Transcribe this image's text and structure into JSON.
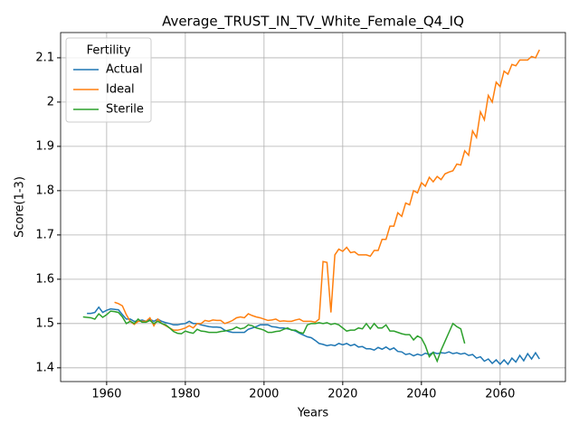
{
  "chart_data": {
    "type": "line",
    "title": "Average_TRUST_IN_TV_White_Female_Q4_IQ",
    "x_label": "Years",
    "y_label": "Score(1-3)",
    "xlim": [
      1948.3,
      2076.6
    ],
    "ylim": [
      1.369,
      2.157
    ],
    "xticks": [
      1960,
      1980,
      2000,
      2020,
      2040,
      2060
    ],
    "yticks": [
      1.4,
      1.5,
      1.6,
      1.7,
      1.8,
      1.9,
      2.0,
      2.1
    ],
    "grid": true,
    "legend_title": "Fertility",
    "legend_loc": "upper left",
    "x": [
      1954,
      1955,
      1956,
      1957,
      1958,
      1959,
      1960,
      1961,
      1962,
      1963,
      1964,
      1965,
      1966,
      1967,
      1968,
      1969,
      1970,
      1971,
      1972,
      1973,
      1974,
      1975,
      1976,
      1977,
      1978,
      1979,
      1980,
      1981,
      1982,
      1983,
      1984,
      1985,
      1986,
      1987,
      1988,
      1989,
      1990,
      1991,
      1992,
      1993,
      1994,
      1995,
      1996,
      1997,
      1998,
      1999,
      2000,
      2001,
      2002,
      2003,
      2004,
      2005,
      2006,
      2007,
      2008,
      2009,
      2010,
      2011,
      2012,
      2013,
      2014,
      2015,
      2016,
      2017,
      2018,
      2019,
      2020,
      2021,
      2022,
      2023,
      2024,
      2025,
      2026,
      2027,
      2028,
      2029,
      2030,
      2031,
      2032,
      2033,
      2034,
      2035,
      2036,
      2037,
      2038,
      2039,
      2040,
      2041,
      2042,
      2043,
      2044,
      2045,
      2046,
      2047,
      2048,
      2049,
      2050,
      2051,
      2052,
      2053,
      2054,
      2055,
      2056,
      2057,
      2058,
      2059,
      2060,
      2061,
      2062,
      2063,
      2064,
      2065,
      2066,
      2067,
      2068,
      2069,
      2070
    ],
    "series": [
      {
        "name": "Actual",
        "color": "#1f77b4",
        "values": [
          null,
          1.523,
          1.523,
          1.525,
          1.537,
          1.525,
          1.53,
          1.533,
          1.532,
          1.531,
          1.52,
          1.51,
          1.51,
          1.505,
          1.505,
          1.508,
          1.505,
          1.51,
          1.505,
          1.51,
          1.505,
          1.502,
          1.5,
          1.497,
          1.497,
          1.499,
          1.5,
          1.505,
          1.5,
          1.5,
          1.497,
          1.495,
          1.493,
          1.492,
          1.492,
          1.491,
          1.485,
          1.482,
          1.48,
          1.48,
          1.48,
          1.48,
          1.487,
          1.49,
          1.493,
          1.497,
          1.497,
          1.497,
          1.493,
          1.492,
          1.49,
          1.49,
          1.488,
          1.486,
          1.483,
          1.478,
          1.474,
          1.47,
          1.468,
          1.462,
          1.455,
          1.453,
          1.45,
          1.452,
          1.45,
          1.455,
          1.452,
          1.455,
          1.45,
          1.453,
          1.447,
          1.448,
          1.443,
          1.443,
          1.44,
          1.446,
          1.442,
          1.447,
          1.441,
          1.445,
          1.437,
          1.436,
          1.43,
          1.432,
          1.427,
          1.431,
          1.428,
          1.433,
          1.43,
          1.435,
          1.432,
          1.434,
          1.433,
          1.436,
          1.432,
          1.434,
          1.431,
          1.433,
          1.428,
          1.43,
          1.422,
          1.425,
          1.415,
          1.42,
          1.41,
          1.418,
          1.408,
          1.418,
          1.408,
          1.422,
          1.413,
          1.428,
          1.416,
          1.432,
          1.42,
          1.434,
          1.42
        ]
      },
      {
        "name": "Ideal",
        "color": "#ff7f0e",
        "values": [
          null,
          null,
          null,
          null,
          null,
          null,
          null,
          null,
          1.548,
          1.545,
          1.54,
          1.52,
          1.505,
          1.498,
          1.505,
          1.505,
          1.505,
          1.513,
          1.495,
          1.51,
          1.5,
          1.495,
          1.49,
          1.485,
          1.485,
          1.487,
          1.49,
          1.495,
          1.49,
          1.5,
          1.5,
          1.507,
          1.505,
          1.508,
          1.507,
          1.507,
          1.5,
          1.503,
          1.507,
          1.513,
          1.515,
          1.513,
          1.522,
          1.518,
          1.515,
          1.513,
          1.51,
          1.507,
          1.508,
          1.51,
          1.505,
          1.506,
          1.505,
          1.505,
          1.508,
          1.51,
          1.505,
          1.505,
          1.505,
          1.503,
          1.51,
          1.64,
          1.638,
          1.525,
          1.655,
          1.668,
          1.663,
          1.672,
          1.66,
          1.662,
          1.655,
          1.655,
          1.655,
          1.652,
          1.665,
          1.665,
          1.69,
          1.69,
          1.72,
          1.72,
          1.75,
          1.742,
          1.772,
          1.768,
          1.8,
          1.795,
          1.818,
          1.81,
          1.83,
          1.82,
          1.832,
          1.825,
          1.838,
          1.842,
          1.845,
          1.86,
          1.858,
          1.89,
          1.88,
          1.935,
          1.92,
          1.978,
          1.96,
          2.015,
          2.0,
          2.045,
          2.035,
          2.07,
          2.063,
          2.085,
          2.082,
          2.095,
          2.095,
          2.095,
          2.103,
          2.1,
          2.118
        ]
      },
      {
        "name": "Sterile",
        "color": "#2ca02c",
        "values": [
          1.515,
          1.514,
          1.513,
          1.51,
          1.522,
          1.514,
          1.52,
          1.528,
          1.527,
          1.525,
          1.515,
          1.5,
          1.505,
          1.5,
          1.51,
          1.503,
          1.503,
          1.507,
          1.5,
          1.505,
          1.5,
          1.497,
          1.49,
          1.482,
          1.478,
          1.477,
          1.483,
          1.48,
          1.478,
          1.487,
          1.483,
          1.482,
          1.48,
          1.48,
          1.48,
          1.482,
          1.483,
          1.485,
          1.487,
          1.492,
          1.488,
          1.49,
          1.497,
          1.495,
          1.49,
          1.488,
          1.485,
          1.48,
          1.48,
          1.482,
          1.483,
          1.487,
          1.49,
          1.485,
          1.485,
          1.48,
          1.478,
          1.497,
          1.5,
          1.5,
          1.502,
          1.5,
          1.502,
          1.498,
          1.5,
          1.497,
          1.49,
          1.483,
          1.485,
          1.485,
          1.49,
          1.488,
          1.5,
          1.488,
          1.5,
          1.49,
          1.49,
          1.497,
          1.483,
          1.483,
          1.48,
          1.477,
          1.475,
          1.475,
          1.463,
          1.472,
          1.467,
          1.45,
          1.425,
          1.435,
          1.415,
          1.44,
          1.46,
          1.48,
          1.5,
          1.493,
          1.488,
          1.455,
          null,
          null,
          null,
          null,
          null,
          null,
          null,
          null,
          null,
          null,
          null,
          null,
          null,
          null,
          null,
          null,
          null,
          null,
          null
        ]
      }
    ]
  }
}
